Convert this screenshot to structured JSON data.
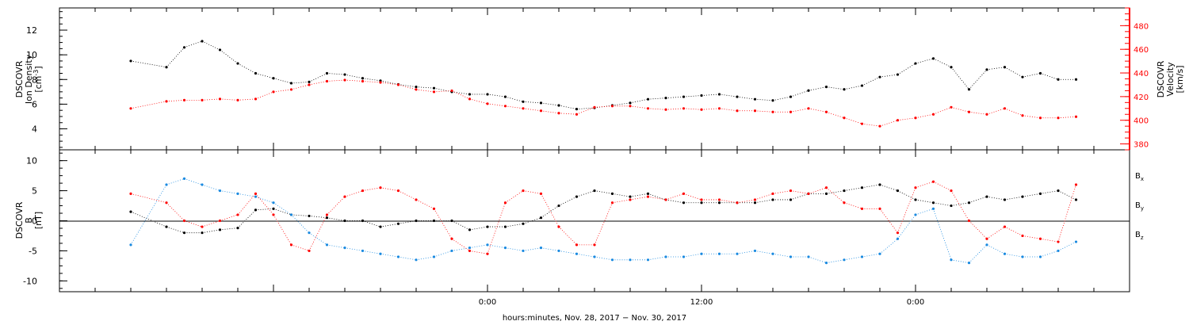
{
  "colors": {
    "density": "#000000",
    "velocity": "#ff0000",
    "bx": "#000000",
    "by": "#1a8ae0",
    "bz": "#ff0000",
    "frame": "#000000"
  },
  "chart_data": [
    {
      "type": "scatter",
      "panel": "top",
      "ylabel": "DSCOVR Ion Density [cm^-3]",
      "ylabel_lines": [
        "DSCOVR",
        "Ion Density",
        "[cm",
        "-3",
        "]"
      ],
      "ylim": [
        2.3,
        13.8
      ],
      "yticks": [
        4,
        6,
        8,
        10,
        12
      ],
      "series": [
        {
          "axis": "left",
          "color_key": "density",
          "x": [
            -20,
            -18,
            -17,
            -16,
            -15,
            -14,
            -13,
            -12,
            -11,
            -10,
            -9,
            -8,
            -7,
            -6,
            -5,
            -4,
            -3,
            -2,
            -1,
            0,
            1,
            2,
            3,
            4,
            5,
            6,
            7,
            8,
            9,
            10,
            11,
            12,
            13,
            14,
            15,
            16,
            17,
            18,
            19,
            20,
            21,
            22,
            23,
            24,
            25,
            26,
            27,
            28,
            29,
            30,
            31,
            32,
            33
          ],
          "y": [
            9.5,
            9.0,
            10.6,
            11.1,
            10.4,
            9.3,
            8.5,
            8.1,
            7.7,
            7.8,
            8.5,
            8.4,
            8.1,
            7.9,
            7.6,
            7.4,
            7.3,
            7.0,
            6.8,
            6.8,
            6.6,
            6.2,
            6.1,
            5.9,
            5.6,
            5.7,
            5.9,
            6.1,
            6.4,
            6.5,
            6.6,
            6.7,
            6.8,
            6.6,
            6.4,
            6.3,
            6.6,
            7.1,
            7.4,
            7.2,
            7.5,
            8.2,
            8.4,
            9.3,
            9.7,
            9.0,
            7.2,
            8.8,
            9.0,
            8.2,
            8.5,
            8.0,
            8.0
          ]
        },
        {
          "axis": "right",
          "color_key": "velocity",
          "x": [
            -20,
            -18,
            -17,
            -16,
            -15,
            -14,
            -13,
            -12,
            -11,
            -10,
            -9,
            -8,
            -7,
            -6,
            -5,
            -4,
            -3,
            -2,
            -1,
            0,
            1,
            2,
            3,
            4,
            5,
            6,
            7,
            8,
            9,
            10,
            11,
            12,
            13,
            14,
            15,
            16,
            17,
            18,
            19,
            20,
            21,
            22,
            23,
            24,
            25,
            26,
            27,
            28,
            29,
            30,
            31,
            32,
            33
          ],
          "y": [
            410,
            416,
            417,
            417,
            418,
            417,
            418,
            424,
            426,
            430,
            433,
            434,
            433,
            432,
            430,
            426,
            424,
            425,
            418,
            414,
            412,
            410,
            408,
            406,
            405,
            411,
            412,
            412,
            410,
            409,
            410,
            409,
            410,
            408,
            408,
            407,
            407,
            410,
            407,
            402,
            397,
            395,
            400,
            402,
            405,
            411,
            407,
            405,
            410,
            404,
            402,
            402,
            403
          ]
        }
      ],
      "y2label": "DSCOVR Velocity [km/s]",
      "y2label_lines": [
        "DSCOVR",
        "Velocity",
        "[km/s]"
      ],
      "y2lim": [
        375,
        495
      ],
      "y2ticks": [
        380,
        400,
        420,
        440,
        460,
        480
      ]
    },
    {
      "type": "scatter",
      "panel": "bottom",
      "ylabel": "DSCOVR B [nT]",
      "ylabel_lines": [
        "DSCOVR",
        "B",
        "[nT]"
      ],
      "ylim": [
        -11.8,
        11.8
      ],
      "yticks": [
        -10,
        -5,
        0,
        5,
        10
      ],
      "series": [
        {
          "name": "Bx",
          "name_main": "B",
          "name_sub": "x",
          "color_key": "bx",
          "x": [
            -20,
            -18,
            -17,
            -16,
            -15,
            -14,
            -13,
            -12,
            -11,
            -10,
            -9,
            -8,
            -7,
            -6,
            -5,
            -4,
            -3,
            -2,
            -1,
            0,
            1,
            2,
            3,
            4,
            5,
            6,
            7,
            8,
            9,
            10,
            11,
            12,
            13,
            14,
            15,
            16,
            17,
            18,
            19,
            20,
            21,
            22,
            23,
            24,
            25,
            26,
            27,
            28,
            29,
            30,
            31,
            32,
            33
          ],
          "y": [
            1.5,
            -1.0,
            -2.0,
            -2.0,
            -1.5,
            -1.2,
            1.8,
            2.0,
            1.0,
            0.8,
            0.5,
            0.0,
            0.0,
            -1.0,
            -0.5,
            0.0,
            0.0,
            0.0,
            -1.5,
            -1.0,
            -1.0,
            -0.5,
            0.5,
            2.5,
            4.0,
            5.0,
            4.5,
            4.0,
            4.5,
            3.5,
            3.0,
            3.0,
            3.0,
            3.0,
            3.0,
            3.5,
            3.5,
            4.5,
            4.5,
            5.0,
            5.5,
            6.0,
            5.0,
            3.5,
            3.0,
            2.5,
            3.0,
            4.0,
            3.5,
            4.0,
            4.5,
            5.0,
            3.5
          ]
        },
        {
          "name": "By",
          "name_main": "B",
          "name_sub": "y",
          "color_key": "by",
          "x": [
            -20,
            -18,
            -17,
            -16,
            -15,
            -14,
            -13,
            -12,
            -11,
            -10,
            -9,
            -8,
            -7,
            -6,
            -5,
            -4,
            -3,
            -2,
            -1,
            0,
            1,
            2,
            3,
            4,
            5,
            6,
            7,
            8,
            9,
            10,
            11,
            12,
            13,
            14,
            15,
            16,
            17,
            18,
            19,
            20,
            21,
            22,
            23,
            24,
            25,
            26,
            27,
            28,
            29,
            30,
            31,
            32,
            33
          ],
          "y": [
            -4.0,
            6.0,
            7.0,
            6.0,
            5.0,
            4.5,
            4.0,
            3.0,
            1.0,
            -2.0,
            -4.0,
            -4.5,
            -5.0,
            -5.5,
            -6.0,
            -6.5,
            -6.0,
            -5.0,
            -4.5,
            -4.0,
            -4.5,
            -5.0,
            -4.5,
            -5.0,
            -5.5,
            -6.0,
            -6.5,
            -6.5,
            -6.5,
            -6.0,
            -6.0,
            -5.5,
            -5.5,
            -5.5,
            -5.0,
            -5.5,
            -6.0,
            -6.0,
            -7.0,
            -6.5,
            -6.0,
            -5.5,
            -3.0,
            1.0,
            2.0,
            -6.5,
            -7.0,
            -4.0,
            -5.5,
            -6.0,
            -6.0,
            -5.0,
            -3.5
          ]
        },
        {
          "name": "Bz",
          "name_main": "B",
          "name_sub": "z",
          "color_key": "bz",
          "x": [
            -20,
            -18,
            -17,
            -16,
            -15,
            -14,
            -13,
            -12,
            -11,
            -10,
            -9,
            -8,
            -7,
            -6,
            -5,
            -4,
            -3,
            -2,
            -1,
            0,
            1,
            2,
            3,
            4,
            5,
            6,
            7,
            8,
            9,
            10,
            11,
            12,
            13,
            14,
            15,
            16,
            17,
            18,
            19,
            20,
            21,
            22,
            23,
            24,
            25,
            26,
            27,
            28,
            29,
            30,
            31,
            32,
            33
          ],
          "y": [
            4.5,
            3.0,
            0.0,
            -1.0,
            0.0,
            1.0,
            4.5,
            1.0,
            -4.0,
            -5.0,
            1.0,
            4.0,
            5.0,
            5.5,
            5.0,
            3.5,
            2.0,
            -3.0,
            -5.0,
            -5.5,
            3.0,
            5.0,
            4.5,
            -1.0,
            -4.0,
            -4.0,
            3.0,
            3.5,
            4.0,
            3.5,
            4.5,
            3.5,
            3.5,
            3.0,
            3.5,
            4.5,
            5.0,
            4.5,
            5.5,
            3.0,
            2.0,
            2.0,
            -2.0,
            5.5,
            6.5,
            5.0,
            0.0,
            -3.0,
            -1.0,
            -2.5,
            -3.0,
            -3.5,
            6.0
          ]
        }
      ]
    }
  ],
  "xaxis": {
    "xlim": [
      -24,
      36
    ],
    "ticks": [
      0,
      24
    ],
    "labeled_ticks": [
      {
        "t": 0,
        "label": "0:00"
      },
      {
        "t": 12,
        "label": "12:00"
      },
      {
        "t": 24,
        "label": "0:00"
      }
    ],
    "title": "hours:minutes, Nov. 28, 2017 − Nov. 30, 2017"
  }
}
